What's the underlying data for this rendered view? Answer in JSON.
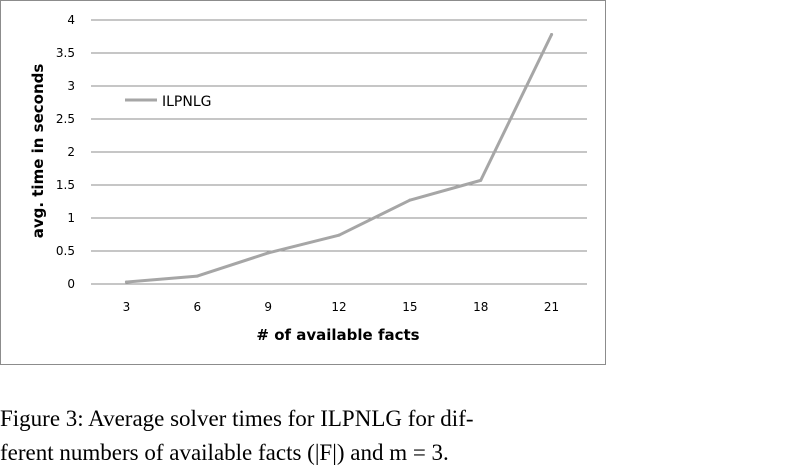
{
  "chart_data": {
    "type": "line",
    "title": "",
    "xlabel": "# of available facts",
    "ylabel": "avg. time in seconds",
    "categories": [
      "3",
      "6",
      "9",
      "12",
      "15",
      "18",
      "21"
    ],
    "ylim": [
      0,
      4
    ],
    "yticks": [
      "0",
      "0.5",
      "1",
      "1.5",
      "2",
      "2.5",
      "3",
      "3.5",
      "4"
    ],
    "grid": true,
    "legend_position": "top-left",
    "series": [
      {
        "name": "ILPNLG",
        "values": [
          0.03,
          0.12,
          0.47,
          0.74,
          1.27,
          1.57,
          3.78
        ],
        "color": "#a6a6a6"
      }
    ]
  },
  "caption": {
    "line1": "Figure 3: Average solver times for ILPNLG for dif-",
    "line2": "ferent numbers of available facts (|F|) and m = 3."
  }
}
